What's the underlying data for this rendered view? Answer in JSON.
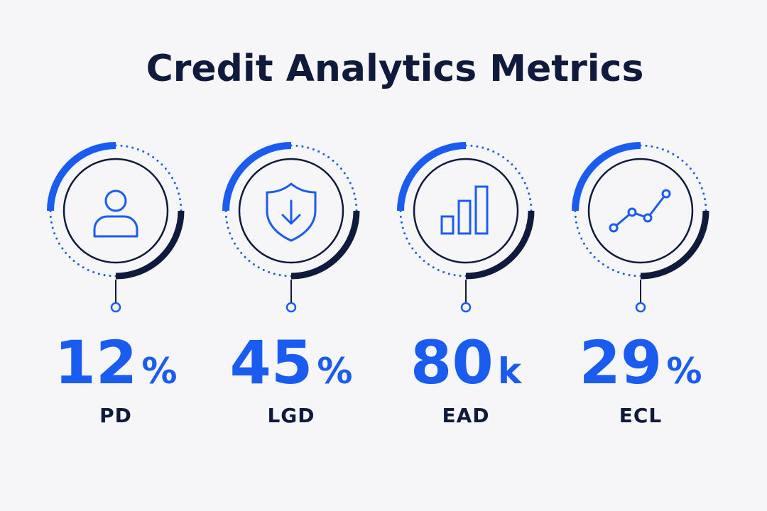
{
  "title": "Credit Analytics Metrics",
  "metrics": [
    {
      "value": 12,
      "unit": "%",
      "label": "PD"
    },
    {
      "value": 45,
      "unit": "%",
      "label": "LGD"
    },
    {
      "value": 80,
      "unit": "k",
      "label": "EAD"
    },
    {
      "value": 29,
      "unit": "%",
      "label": "ECL"
    }
  ]
}
